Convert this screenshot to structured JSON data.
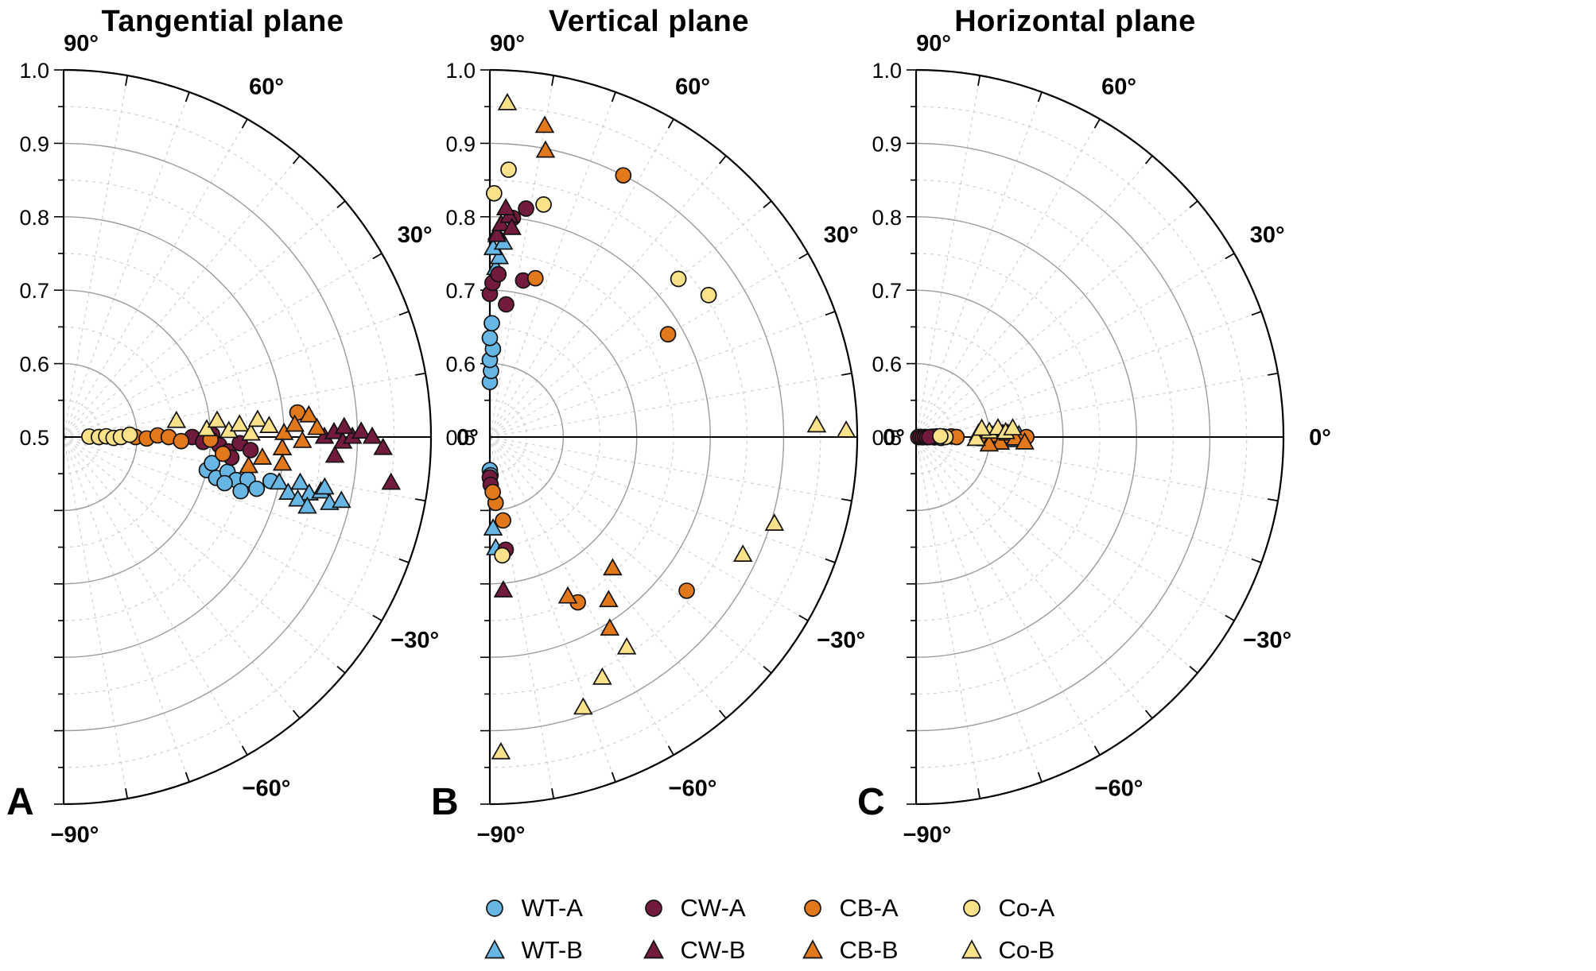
{
  "panels": [
    {
      "id": "tangential",
      "letter": "A",
      "title": "Tangential plane"
    },
    {
      "id": "vertical",
      "letter": "B",
      "title": "Vertical plane"
    },
    {
      "id": "horizontal",
      "letter": "C",
      "title": "Horizontal plane"
    }
  ],
  "axis": {
    "radial_labels": [
      {
        "r": 1.0,
        "text": "1.0"
      },
      {
        "r": 0.9,
        "text": "0.9"
      },
      {
        "r": 0.8,
        "text": "0.8"
      },
      {
        "r": 0.7,
        "text": "0.7"
      },
      {
        "r": 0.6,
        "text": "0.6"
      },
      {
        "r": 0.5,
        "text": "0.5"
      }
    ],
    "angle_labels": [
      {
        "deg": 90,
        "text": "90°"
      },
      {
        "deg": 60,
        "text": "60°"
      },
      {
        "deg": 30,
        "text": "30°"
      },
      {
        "deg": 0,
        "text": "0°"
      },
      {
        "deg": -30,
        "text": "−30°"
      },
      {
        "deg": -60,
        "text": "−60°"
      },
      {
        "deg": -90,
        "text": "−90°"
      }
    ]
  },
  "styles": {
    "axis_color": "#000000",
    "grid_solid": "#9b9b9b",
    "grid_dashed": "#c8c8c8",
    "marker_stroke": "#111111",
    "series": {
      "WT-A": {
        "color": "#68b6e3",
        "marker": "circle"
      },
      "WT-B": {
        "color": "#68b6e3",
        "marker": "triangle"
      },
      "CW-A": {
        "color": "#721b3d",
        "marker": "circle"
      },
      "CW-B": {
        "color": "#721b3d",
        "marker": "triangle"
      },
      "CB-A": {
        "color": "#e1781c",
        "marker": "circle"
      },
      "CB-B": {
        "color": "#e1781c",
        "marker": "triangle"
      },
      "Co-A": {
        "color": "#fce18b",
        "marker": "circle"
      },
      "Co-B": {
        "color": "#fce18b",
        "marker": "triangle"
      }
    }
  },
  "legend": {
    "items": [
      {
        "series": "WT-A",
        "label": "WT-A"
      },
      {
        "series": "CW-A",
        "label": "CW-A"
      },
      {
        "series": "CB-A",
        "label": "CB-A"
      },
      {
        "series": "Co-A",
        "label": "Co-A"
      },
      {
        "series": "WT-B",
        "label": "WT-B"
      },
      {
        "series": "CW-B",
        "label": "CW-B"
      },
      {
        "series": "CB-B",
        "label": "CB-B"
      },
      {
        "series": "Co-B",
        "label": "Co-B"
      }
    ]
  },
  "chart_data": [
    {
      "type": "scatter",
      "projection": "polar-half",
      "id": "tangential",
      "title": "Tangential plane",
      "angle_range_deg": [
        -90,
        90
      ],
      "radial_range": [
        0.5,
        1.0
      ],
      "radial_grid_solid": [
        0.6,
        0.7,
        0.8,
        0.9
      ],
      "radial_grid_dashed": [
        0.55,
        0.65,
        0.75,
        0.85,
        0.95
      ],
      "angle_grid_step_deg": 10,
      "series": [
        {
          "name": "WT-A",
          "points": [
            [
              -13,
              0.7
            ],
            [
              -15,
              0.715
            ],
            [
              -12,
              0.728
            ],
            [
              -14,
              0.742
            ],
            [
              -16,
              0.728
            ],
            [
              -13,
              0.757
            ],
            [
              -15,
              0.772
            ],
            [
              -12,
              0.788
            ],
            [
              -17,
              0.752
            ],
            [
              -10,
              0.705
            ]
          ]
        },
        {
          "name": "WT-B",
          "points": [
            [
              -12,
              0.8
            ],
            [
              -14,
              0.815
            ],
            [
              -11,
              0.828
            ],
            [
              -13,
              0.843
            ],
            [
              -15,
              0.83
            ],
            [
              -12,
              0.858
            ],
            [
              -14,
              0.873
            ],
            [
              -16,
              0.845
            ],
            [
              -13,
              0.888
            ],
            [
              -11,
              0.862
            ]
          ]
        },
        {
          "name": "CW-A",
          "points": [
            [
              0,
              0.675
            ],
            [
              -2,
              0.69
            ],
            [
              1,
              0.702
            ],
            [
              -3,
              0.712
            ],
            [
              -5,
              0.725
            ],
            [
              -2,
              0.74
            ],
            [
              -7,
              0.73
            ],
            [
              -4,
              0.755
            ]
          ]
        },
        {
          "name": "CW-B",
          "points": [
            [
              0,
              0.855
            ],
            [
              1,
              0.868
            ],
            [
              -1,
              0.88
            ],
            [
              0,
              0.893
            ],
            [
              1,
              0.905
            ],
            [
              0,
              0.92
            ],
            [
              -2,
              0.935
            ],
            [
              -4,
              0.87
            ],
            [
              -8,
              0.95
            ],
            [
              2,
              0.882
            ]
          ]
        },
        {
          "name": "CB-A",
          "points": [
            [
              0,
              0.598
            ],
            [
              -1,
              0.613
            ],
            [
              1,
              0.628
            ],
            [
              0,
              0.643
            ],
            [
              -2,
              0.66
            ],
            [
              -1,
              0.7
            ],
            [
              -6,
              0.718
            ],
            [
              6,
              0.82
            ]
          ]
        },
        {
          "name": "CB-B",
          "points": [
            [
              1,
              0.8
            ],
            [
              3,
              0.815
            ],
            [
              -1,
              0.825
            ],
            [
              5,
              0.835
            ],
            [
              -3,
              0.798
            ],
            [
              -6,
              0.772
            ],
            [
              -7,
              0.8
            ],
            [
              -9,
              0.755
            ],
            [
              2,
              0.845
            ]
          ]
        },
        {
          "name": "Co-A",
          "points": [
            [
              1,
              0.535
            ],
            [
              0,
              0.548
            ],
            [
              1,
              0.558
            ],
            [
              -1,
              0.568
            ],
            [
              0,
              0.578
            ],
            [
              2,
              0.59
            ]
          ]
        },
        {
          "name": "Co-B",
          "points": [
            [
              3,
              0.695
            ],
            [
              6,
              0.71
            ],
            [
              2,
              0.725
            ],
            [
              4,
              0.74
            ],
            [
              1,
              0.755
            ],
            [
              5,
              0.765
            ],
            [
              3,
              0.78
            ],
            [
              8,
              0.655
            ]
          ]
        }
      ]
    },
    {
      "type": "scatter",
      "projection": "polar-half",
      "id": "vertical",
      "title": "Vertical plane",
      "angle_range_deg": [
        -90,
        90
      ],
      "radial_range": [
        0.5,
        1.0
      ],
      "radial_grid_solid": [
        0.6,
        0.7,
        0.8,
        0.9
      ],
      "radial_grid_dashed": [
        0.55,
        0.65,
        0.75,
        0.85,
        0.95
      ],
      "angle_grid_step_deg": 10,
      "series": [
        {
          "name": "WT-A",
          "points": [
            [
              90,
              0.575
            ],
            [
              89,
              0.59
            ],
            [
              90,
              0.605
            ],
            [
              88,
              0.62
            ],
            [
              90,
              0.635
            ],
            [
              89,
              0.655
            ],
            [
              -90,
              0.545
            ],
            [
              -89,
              0.552
            ]
          ]
        },
        {
          "name": "WT-B",
          "points": [
            [
              88,
              0.73
            ],
            [
              87,
              0.745
            ],
            [
              89,
              0.757
            ],
            [
              86,
              0.765
            ],
            [
              88,
              0.778
            ],
            [
              -88,
              0.625
            ],
            [
              -87,
              0.652
            ]
          ]
        },
        {
          "name": "CW-A",
          "points": [
            [
              90,
              0.695
            ],
            [
              89,
              0.71
            ],
            [
              87,
              0.722
            ],
            [
              84,
              0.8
            ],
            [
              81,
              0.815
            ],
            [
              78,
              0.718
            ],
            [
              83,
              0.682
            ],
            [
              -90,
              0.555
            ],
            [
              -89,
              0.565
            ],
            [
              -82,
              0.655
            ]
          ]
        },
        {
          "name": "CW-B",
          "points": [
            [
              88,
              0.775
            ],
            [
              87,
              0.79
            ],
            [
              85,
              0.802
            ],
            [
              86,
              0.812
            ],
            [
              84,
              0.786
            ],
            [
              -85,
              0.71
            ]
          ]
        },
        {
          "name": "CB-A",
          "points": [
            [
              63,
              0.9
            ],
            [
              74,
              0.725
            ],
            [
              30,
              0.78
            ],
            [
              -85,
              0.59
            ],
            [
              -81,
              0.615
            ],
            [
              -62,
              0.755
            ],
            [
              -38,
              0.84
            ],
            [
              -87,
              0.575
            ]
          ]
        },
        {
          "name": "CB-B",
          "points": [
            [
              80,
              0.93
            ],
            [
              79,
              0.897
            ],
            [
              -47,
              0.745
            ],
            [
              -54,
              0.775
            ],
            [
              -58,
              0.808
            ],
            [
              -64,
              0.742
            ]
          ]
        },
        {
          "name": "Co-A",
          "points": [
            [
              86,
              0.865
            ],
            [
              89,
              0.832
            ],
            [
              77,
              0.825
            ],
            [
              40,
              0.835
            ],
            [
              33,
              0.855
            ],
            [
              -84,
              0.662
            ]
          ]
        },
        {
          "name": "Co-B",
          "points": [
            [
              87,
              0.955
            ],
            [
              2,
              0.945
            ],
            [
              1,
              0.985
            ],
            [
              -17,
              0.905
            ],
            [
              -25,
              0.88
            ],
            [
              -65,
              0.862
            ],
            [
              -71,
              0.89
            ],
            [
              -88,
              0.93
            ],
            [
              -57,
              0.842
            ]
          ]
        }
      ]
    },
    {
      "type": "scatter",
      "projection": "polar-half",
      "id": "horizontal",
      "title": "Horizontal plane",
      "angle_range_deg": [
        -90,
        90
      ],
      "radial_range": [
        0.5,
        1.0
      ],
      "radial_grid_solid": [
        0.6,
        0.7,
        0.8,
        0.9
      ],
      "radial_grid_dashed": [
        0.55,
        0.65,
        0.75,
        0.85,
        0.95
      ],
      "angle_grid_step_deg": 10,
      "series": [
        {
          "name": "WT-A",
          "points": [
            [
              1,
              0.522
            ],
            [
              -1,
              0.525
            ],
            [
              2,
              0.528
            ],
            [
              0,
              0.531
            ],
            [
              -2,
              0.534
            ],
            [
              1,
              0.537
            ]
          ]
        },
        {
          "name": "WT-B",
          "points": [
            [
              1,
              0.603
            ],
            [
              -1,
              0.612
            ],
            [
              2,
              0.618
            ],
            [
              0,
              0.625
            ],
            [
              -2,
              0.632
            ],
            [
              1,
              0.64
            ]
          ]
        },
        {
          "name": "CW-A",
          "points": [
            [
              0,
              0.503
            ],
            [
              2,
              0.506
            ],
            [
              -2,
              0.509
            ],
            [
              1,
              0.512
            ],
            [
              -1,
              0.515
            ],
            [
              0,
              0.518
            ]
          ]
        },
        {
          "name": "CW-B",
          "points": [
            [
              0,
              0.592
            ],
            [
              2,
              0.6
            ],
            [
              -3,
              0.61
            ]
          ]
        },
        {
          "name": "CB-A",
          "points": [
            [
              1,
              0.548
            ],
            [
              0,
              0.555
            ],
            [
              1,
              0.625
            ],
            [
              0,
              0.65
            ]
          ]
        },
        {
          "name": "CB-B",
          "points": [
            [
              3,
              0.585
            ],
            [
              -2,
              0.595
            ],
            [
              1,
              0.605
            ],
            [
              -4,
              0.615
            ],
            [
              2,
              0.625
            ],
            [
              -1,
              0.635
            ],
            [
              -6,
              0.6
            ],
            [
              -3,
              0.648
            ]
          ]
        },
        {
          "name": "Co-A",
          "points": [
            [
              0,
              0.54
            ],
            [
              2,
              0.533
            ]
          ]
        },
        {
          "name": "Co-B",
          "points": [
            [
              4,
              0.6
            ],
            [
              6,
              0.612
            ],
            [
              3,
              0.622
            ],
            [
              5,
              0.632
            ],
            [
              -2,
              0.582
            ],
            [
              7,
              0.59
            ]
          ]
        }
      ]
    }
  ]
}
